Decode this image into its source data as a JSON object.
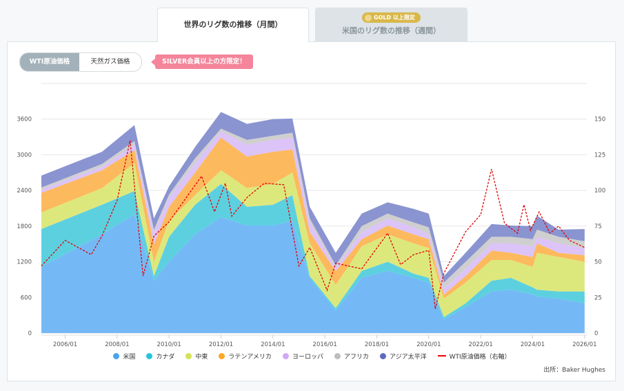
{
  "tabs": [
    {
      "label": "世界のリグ数の推移（月間）",
      "active": true
    },
    {
      "label": "米国のリグ数の推移（週間）",
      "badge": "GOLD 以上限定",
      "active": false
    }
  ],
  "toggle": {
    "options": [
      "WTI原油価格",
      "天然ガス価格"
    ],
    "selected": "WTI原油価格"
  },
  "badge": "SILVER会員以上の方限定！",
  "source": "出所：Baker Hughes",
  "chart_data": {
    "type": "area",
    "stacked": true,
    "x": [
      "2005/02",
      "2007/06",
      "2008/09",
      "2009/06",
      "2010/01",
      "2011/01",
      "2012/01",
      "2013/01",
      "2014/01",
      "2014/10",
      "2015/06",
      "2016/06",
      "2017/06",
      "2018/06",
      "2019/06",
      "2020/01",
      "2020/08",
      "2021/06",
      "2022/06",
      "2023/03",
      "2024/01",
      "2024/03",
      "2025/01",
      "2026/01"
    ],
    "series": [
      {
        "name": "米国",
        "color": "#74b9f5",
        "legend_color": "#4aa3f0",
        "values": [
          1115,
          1660,
          2000,
          880,
          1200,
          1660,
          1950,
          1810,
          1810,
          1890,
          930,
          380,
          930,
          1045,
          930,
          850,
          230,
          440,
          700,
          730,
          650,
          615,
          580,
          500
        ]
      },
      {
        "name": "カナダ",
        "color": "#5dd0e0",
        "legend_color": "#26c6da",
        "values": [
          635,
          500,
          390,
          80,
          420,
          500,
          560,
          315,
          350,
          430,
          30,
          40,
          115,
          155,
          70,
          80,
          40,
          60,
          180,
          200,
          120,
          115,
          120,
          200
        ]
      },
      {
        "name": "中東",
        "color": "#dde87c",
        "legend_color": "#d4e157",
        "values": [
          280,
          280,
          470,
          240,
          270,
          160,
          230,
          315,
          350,
          380,
          550,
          390,
          415,
          460,
          510,
          500,
          310,
          350,
          350,
          300,
          345,
          620,
          580,
          500
        ]
      },
      {
        "name": "ラテンアメリカ",
        "color": "#fdb95d",
        "legend_color": "#ffa726",
        "values": [
          330,
          300,
          220,
          300,
          235,
          380,
          550,
          530,
          540,
          390,
          190,
          235,
          120,
          150,
          150,
          150,
          70,
          110,
          160,
          120,
          165,
          160,
          70,
          110
        ]
      },
      {
        "name": "ヨーロッパ",
        "color": "#dcc3f8",
        "legend_color": "#d2a8f5",
        "values": [
          55,
          60,
          90,
          180,
          155,
          160,
          110,
          200,
          200,
          200,
          170,
          55,
          120,
          120,
          120,
          80,
          100,
          120,
          120,
          160,
          180,
          110,
          160,
          120
        ]
      },
      {
        "name": "アフリカ",
        "color": "#cfcfcf",
        "legend_color": "#bdbdbd",
        "values": [
          35,
          45,
          60,
          60,
          50,
          80,
          40,
          80,
          70,
          80,
          60,
          40,
          100,
          80,
          80,
          120,
          100,
          120,
          110,
          110,
          120,
          120,
          110,
          115
        ]
      },
      {
        "name": "アジア太平洋",
        "color": "#8a94d0",
        "legend_color": "#5c6bc0",
        "values": [
          200,
          205,
          270,
          190,
          140,
          190,
          280,
          270,
          280,
          240,
          195,
          210,
          210,
          190,
          230,
          230,
          110,
          150,
          215,
          190,
          220,
          235,
          120,
          205
        ]
      }
    ],
    "line_series": {
      "name": "WTI原油価格（右軸）",
      "color": "#e00000",
      "axis": "right",
      "x": [
        "2005/02",
        "2006/01",
        "2007/01",
        "2007/06",
        "2008/01",
        "2008/07",
        "2009/01",
        "2009/06",
        "2010/01",
        "2011/04",
        "2011/10",
        "2012/03",
        "2012/06",
        "2013/01",
        "2013/09",
        "2014/06",
        "2015/01",
        "2015/06",
        "2016/02",
        "2016/06",
        "2017/06",
        "2018/06",
        "2018/12",
        "2019/06",
        "2020/01",
        "2020/04",
        "2020/08",
        "2021/06",
        "2022/01",
        "2022/06",
        "2022/12",
        "2023/06",
        "2023/09",
        "2023/12",
        "2024/04",
        "2024/09",
        "2025/01",
        "2025/06",
        "2026/01"
      ],
      "values": [
        47,
        65,
        55,
        68,
        93,
        135,
        40,
        68,
        78,
        110,
        85,
        105,
        82,
        95,
        105,
        104,
        47,
        60,
        30,
        49,
        45,
        70,
        48,
        55,
        58,
        17,
        42,
        71,
        83,
        115,
        77,
        70,
        90,
        72,
        85,
        70,
        75,
        65,
        60
      ]
    },
    "xlim": [
      "2005/02",
      "2026/02"
    ],
    "xticks": [
      "2006/01",
      "2008/01",
      "2010/01",
      "2012/01",
      "2014/01",
      "2016/01",
      "2018/01",
      "2020/01",
      "2022/01",
      "2024/01",
      "2026/01"
    ],
    "ylim_left": [
      0,
      4200
    ],
    "yticks_left": [
      0,
      600,
      1200,
      1800,
      2400,
      3000,
      3600
    ],
    "ylim_right": [
      0,
      175
    ],
    "yticks_right": [
      0,
      25,
      50,
      75,
      100,
      125,
      150
    ],
    "grid": true,
    "legend_position": "bottom"
  }
}
